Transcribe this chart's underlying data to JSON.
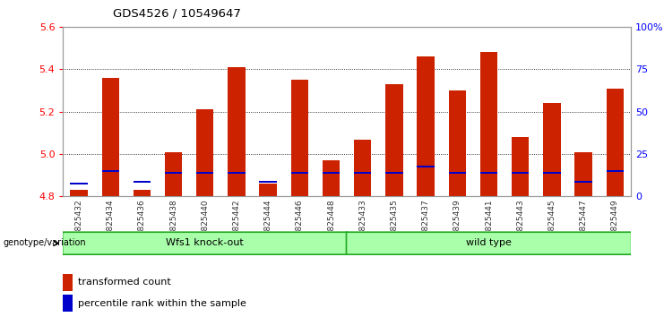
{
  "title": "GDS4526 / 10549647",
  "samples": [
    "GSM825432",
    "GSM825434",
    "GSM825436",
    "GSM825438",
    "GSM825440",
    "GSM825442",
    "GSM825444",
    "GSM825446",
    "GSM825448",
    "GSM825433",
    "GSM825435",
    "GSM825437",
    "GSM825439",
    "GSM825441",
    "GSM825443",
    "GSM825445",
    "GSM825447",
    "GSM825449"
  ],
  "transformed_count": [
    4.83,
    5.36,
    4.83,
    5.01,
    5.21,
    5.41,
    4.86,
    5.35,
    4.97,
    5.07,
    5.33,
    5.46,
    5.3,
    5.48,
    5.08,
    5.24,
    5.01,
    5.31
  ],
  "percentile_rank": [
    4.86,
    4.92,
    4.87,
    4.91,
    4.91,
    4.91,
    4.87,
    4.91,
    4.91,
    4.91,
    4.91,
    4.94,
    4.91,
    4.91,
    4.91,
    4.91,
    4.87,
    4.92
  ],
  "groups": [
    {
      "label": "Wfs1 knock-out",
      "start": 0,
      "end": 9
    },
    {
      "label": "wild type",
      "start": 9,
      "end": 18
    }
  ],
  "group_divider": 9,
  "ymin": 4.8,
  "ymax": 5.6,
  "yticks": [
    4.8,
    5.0,
    5.2,
    5.4,
    5.6
  ],
  "right_ytick_pcts": [
    0,
    25,
    50,
    75,
    100
  ],
  "right_yticklabels": [
    "0",
    "25",
    "50",
    "75",
    "100%"
  ],
  "bar_color": "#cc2200",
  "percentile_color": "#0000cc",
  "bar_width": 0.55,
  "genotype_label": "genotype/variation",
  "group_fill": "#aaffaa",
  "group_edge": "#22aa22",
  "legend_items": [
    {
      "label": "transformed count",
      "color": "#cc2200"
    },
    {
      "label": "percentile rank within the sample",
      "color": "#0000cc"
    }
  ]
}
